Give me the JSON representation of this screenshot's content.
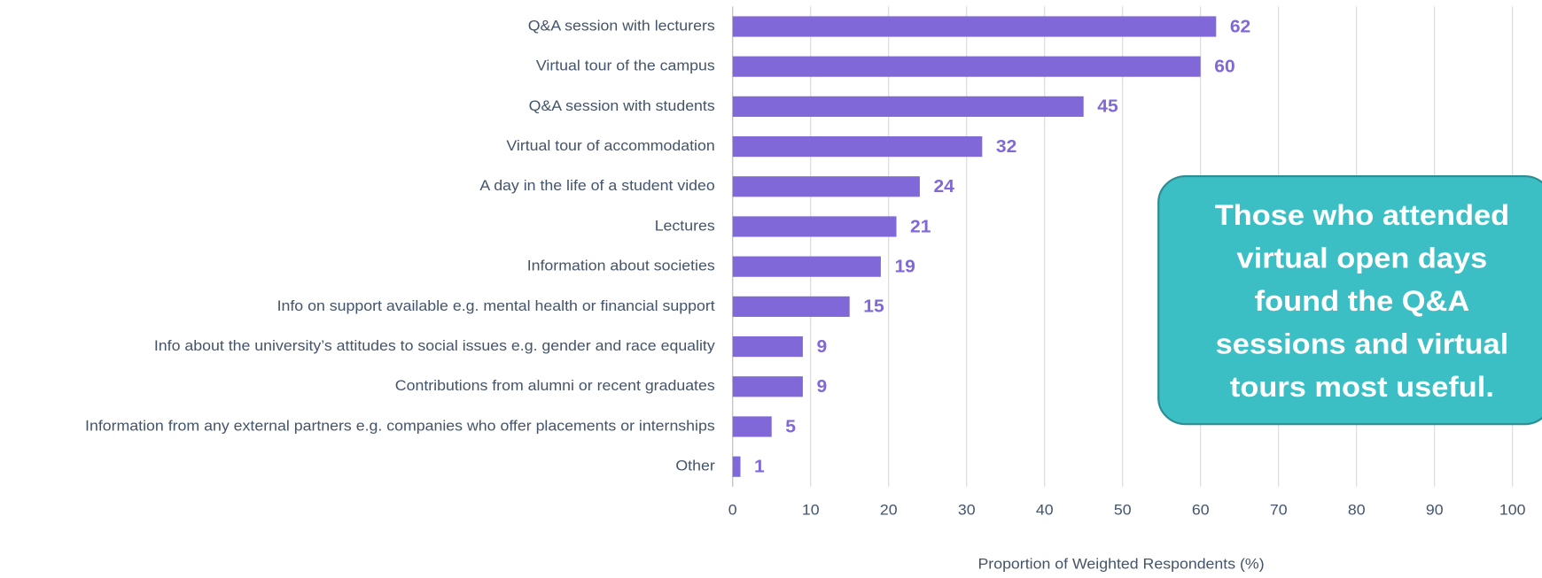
{
  "chart_data": {
    "type": "bar",
    "orientation": "horizontal",
    "categories": [
      "Q&A session with lecturers",
      "Virtual tour of the campus",
      "Q&A session with students",
      "Virtual tour of accommodation",
      "A day in the life of a student video",
      "Lectures",
      "Information about societies",
      "Info on support available e.g. mental health or financial support",
      "Info about the university’s attitudes to social issues e.g. gender and race equality",
      "Contributions from alumni or recent graduates",
      "Information from any external partners e.g. companies who offer placements or internships",
      "Other"
    ],
    "values": [
      62,
      60,
      45,
      32,
      24,
      21,
      19,
      15,
      9,
      9,
      5,
      1
    ],
    "color": "#8068d8",
    "xlim": [
      0,
      100
    ],
    "xticks": [
      0,
      10,
      20,
      30,
      40,
      50,
      60,
      70,
      80,
      90,
      100
    ],
    "x_label": "Proportion of Weighted Respondents (%)",
    "grid": true,
    "annotation": [
      "Those who attended",
      "virtual open days",
      "found the Q&A",
      "sessions and virtual",
      "tours most useful."
    ]
  }
}
